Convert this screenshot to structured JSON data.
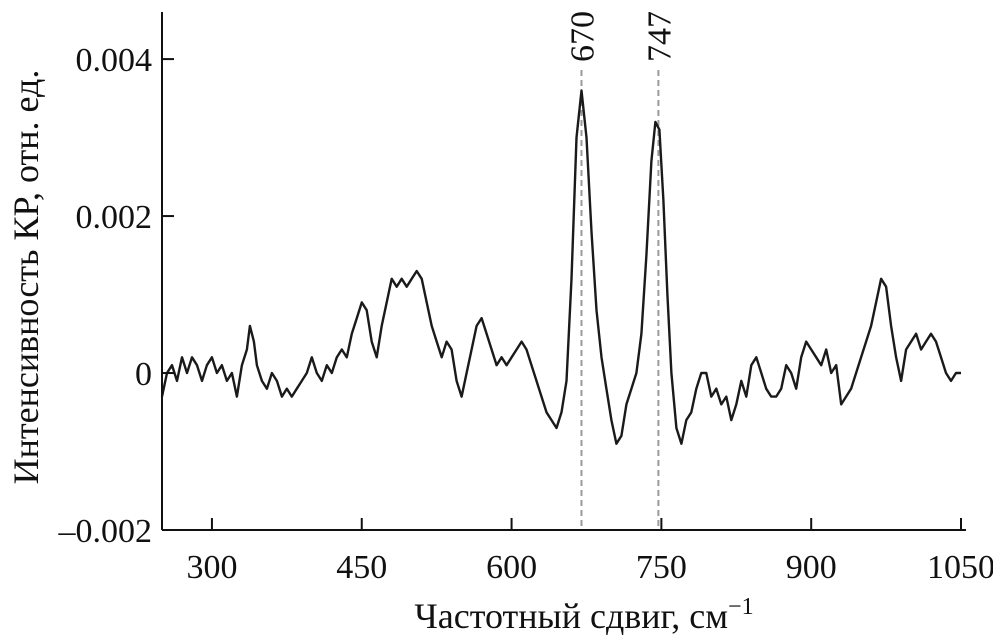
{
  "chart_data": {
    "type": "line",
    "title": "",
    "xlabel": "Частотный сдвиг, см",
    "xlabel_sup": "−1",
    "ylabel": "Интенсивность КР, отн. ед.",
    "xlim": [
      250,
      1055
    ],
    "ylim": [
      -0.002,
      0.0046
    ],
    "x_ticks": [
      300,
      450,
      600,
      750,
      900,
      1050
    ],
    "x_tick_labels": [
      "300",
      "450",
      "600",
      "750",
      "900",
      "1050"
    ],
    "y_ticks": [
      -0.002,
      0,
      0.002,
      0.004
    ],
    "y_tick_labels": [
      "–0.002",
      "0",
      "0.002",
      "0.004"
    ],
    "grid": false,
    "annotations": [
      {
        "label": "670",
        "x": 670
      },
      {
        "label": "747",
        "x": 747
      }
    ],
    "series": [
      {
        "color": "#1a1a1a",
        "points": [
          [
            250,
            -0.0003
          ],
          [
            255,
            0.0
          ],
          [
            260,
            0.0001
          ],
          [
            265,
            -0.0001
          ],
          [
            270,
            0.0002
          ],
          [
            275,
            0.0
          ],
          [
            280,
            0.0002
          ],
          [
            285,
            0.0001
          ],
          [
            290,
            -0.0001
          ],
          [
            295,
            0.0001
          ],
          [
            300,
            0.0002
          ],
          [
            305,
            0.0
          ],
          [
            310,
            0.0001
          ],
          [
            315,
            -0.0001
          ],
          [
            320,
            0.0
          ],
          [
            325,
            -0.0003
          ],
          [
            330,
            0.0001
          ],
          [
            335,
            0.0003
          ],
          [
            338,
            0.0006
          ],
          [
            342,
            0.0004
          ],
          [
            345,
            0.0001
          ],
          [
            350,
            -0.0001
          ],
          [
            355,
            -0.0002
          ],
          [
            360,
            0.0
          ],
          [
            365,
            -0.0001
          ],
          [
            370,
            -0.0003
          ],
          [
            375,
            -0.0002
          ],
          [
            380,
            -0.0003
          ],
          [
            385,
            -0.0002
          ],
          [
            390,
            -0.0001
          ],
          [
            395,
            0.0
          ],
          [
            400,
            0.0002
          ],
          [
            405,
            0.0
          ],
          [
            410,
            -0.0001
          ],
          [
            415,
            0.0001
          ],
          [
            420,
            0.0
          ],
          [
            425,
            0.0002
          ],
          [
            430,
            0.0003
          ],
          [
            435,
            0.0002
          ],
          [
            440,
            0.0005
          ],
          [
            445,
            0.0007
          ],
          [
            450,
            0.0009
          ],
          [
            455,
            0.0008
          ],
          [
            460,
            0.0004
          ],
          [
            465,
            0.0002
          ],
          [
            470,
            0.0006
          ],
          [
            475,
            0.0009
          ],
          [
            480,
            0.0012
          ],
          [
            485,
            0.0011
          ],
          [
            490,
            0.0012
          ],
          [
            495,
            0.0011
          ],
          [
            500,
            0.0012
          ],
          [
            505,
            0.0013
          ],
          [
            510,
            0.0012
          ],
          [
            515,
            0.0009
          ],
          [
            520,
            0.0006
          ],
          [
            525,
            0.0004
          ],
          [
            530,
            0.0002
          ],
          [
            535,
            0.0004
          ],
          [
            540,
            0.0003
          ],
          [
            545,
            -0.0001
          ],
          [
            550,
            -0.0003
          ],
          [
            555,
            0.0
          ],
          [
            560,
            0.0003
          ],
          [
            565,
            0.0006
          ],
          [
            570,
            0.0007
          ],
          [
            575,
            0.0005
          ],
          [
            580,
            0.0003
          ],
          [
            585,
            0.0001
          ],
          [
            590,
            0.0002
          ],
          [
            595,
            0.0001
          ],
          [
            600,
            0.0002
          ],
          [
            605,
            0.0003
          ],
          [
            610,
            0.0004
          ],
          [
            615,
            0.0003
          ],
          [
            620,
            0.0001
          ],
          [
            625,
            -0.0001
          ],
          [
            630,
            -0.0003
          ],
          [
            635,
            -0.0005
          ],
          [
            640,
            -0.0006
          ],
          [
            645,
            -0.0007
          ],
          [
            650,
            -0.0005
          ],
          [
            655,
            -0.0001
          ],
          [
            660,
            0.0012
          ],
          [
            665,
            0.003
          ],
          [
            670,
            0.0036
          ],
          [
            675,
            0.003
          ],
          [
            680,
            0.0018
          ],
          [
            685,
            0.0008
          ],
          [
            690,
            0.0002
          ],
          [
            695,
            -0.0002
          ],
          [
            700,
            -0.0006
          ],
          [
            705,
            -0.0009
          ],
          [
            710,
            -0.0008
          ],
          [
            715,
            -0.0004
          ],
          [
            720,
            -0.0002
          ],
          [
            725,
            0.0
          ],
          [
            730,
            0.0005
          ],
          [
            735,
            0.0015
          ],
          [
            740,
            0.0027
          ],
          [
            744,
            0.0032
          ],
          [
            748,
            0.0031
          ],
          [
            752,
            0.0022
          ],
          [
            756,
            0.001
          ],
          [
            760,
            0.0
          ],
          [
            765,
            -0.0007
          ],
          [
            770,
            -0.0009
          ],
          [
            775,
            -0.0006
          ],
          [
            780,
            -0.0005
          ],
          [
            785,
            -0.0002
          ],
          [
            790,
            0.0
          ],
          [
            795,
            0.0
          ],
          [
            800,
            -0.0003
          ],
          [
            805,
            -0.0002
          ],
          [
            810,
            -0.0004
          ],
          [
            815,
            -0.0003
          ],
          [
            820,
            -0.0006
          ],
          [
            825,
            -0.0004
          ],
          [
            830,
            -0.0001
          ],
          [
            835,
            -0.0003
          ],
          [
            840,
            0.0001
          ],
          [
            845,
            0.0002
          ],
          [
            850,
            0.0
          ],
          [
            855,
            -0.0002
          ],
          [
            860,
            -0.0003
          ],
          [
            865,
            -0.0003
          ],
          [
            870,
            -0.0002
          ],
          [
            875,
            0.0001
          ],
          [
            880,
            0.0
          ],
          [
            885,
            -0.0002
          ],
          [
            890,
            0.0002
          ],
          [
            895,
            0.0004
          ],
          [
            900,
            0.0003
          ],
          [
            905,
            0.0002
          ],
          [
            910,
            0.0001
          ],
          [
            915,
            0.0003
          ],
          [
            920,
            0.0
          ],
          [
            925,
            0.0001
          ],
          [
            930,
            -0.0004
          ],
          [
            935,
            -0.0003
          ],
          [
            940,
            -0.0002
          ],
          [
            945,
            0.0
          ],
          [
            950,
            0.0002
          ],
          [
            955,
            0.0004
          ],
          [
            960,
            0.0006
          ],
          [
            965,
            0.0009
          ],
          [
            970,
            0.0012
          ],
          [
            975,
            0.0011
          ],
          [
            980,
            0.0006
          ],
          [
            985,
            0.0002
          ],
          [
            990,
            -0.0001
          ],
          [
            995,
            0.0003
          ],
          [
            1000,
            0.0004
          ],
          [
            1005,
            0.0005
          ],
          [
            1010,
            0.0003
          ],
          [
            1015,
            0.0004
          ],
          [
            1020,
            0.0005
          ],
          [
            1025,
            0.0004
          ],
          [
            1030,
            0.0002
          ],
          [
            1035,
            0.0
          ],
          [
            1040,
            -0.0001
          ],
          [
            1045,
            0.0
          ],
          [
            1050,
            0.0
          ]
        ]
      }
    ]
  }
}
